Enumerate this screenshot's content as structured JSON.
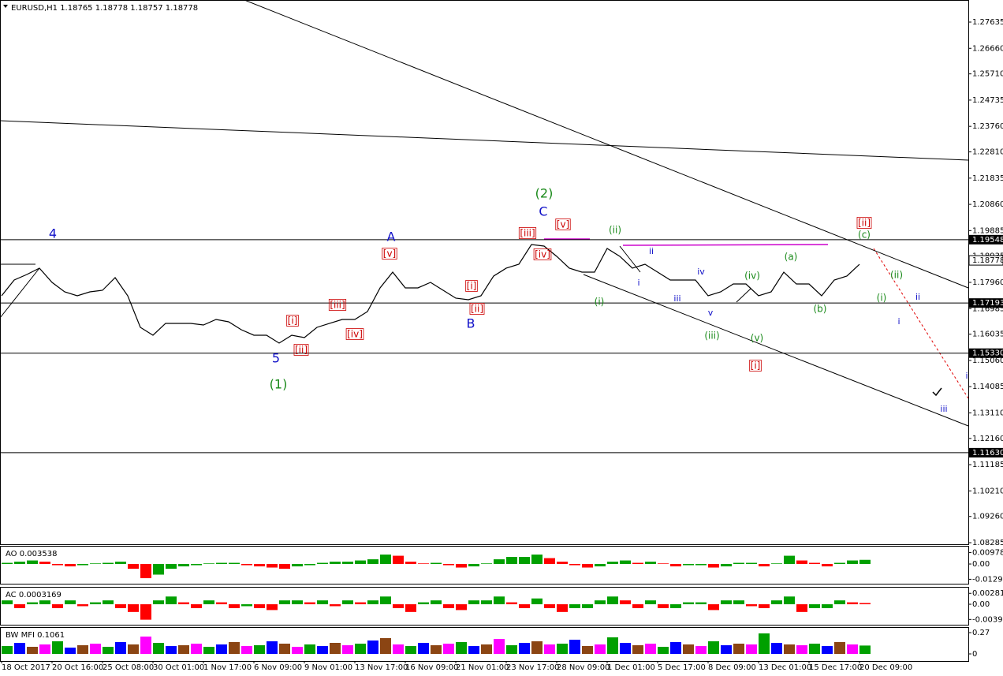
{
  "chart_data": [
    {
      "type": "line",
      "title": "EURUSD,H1  1.18765 1.18778 1.18757 1.18778",
      "categories": [
        "18 Oct 2017",
        null,
        null,
        null,
        "20 Oct 16:00",
        null,
        null,
        null,
        "25 Oct 08:00",
        null,
        null,
        null,
        "30 Oct 01:00",
        null,
        null,
        null,
        "1 Nov 17:00",
        null,
        null,
        null,
        "6 Nov 09:00",
        null,
        null,
        null,
        "9 Nov 01:00",
        null,
        null,
        null,
        "13 Nov 17:00",
        null,
        null,
        null,
        "16 Nov 09:00",
        null,
        null,
        null,
        "21 Nov 01:00",
        null,
        null,
        null,
        "23 Nov 17:00",
        null,
        null,
        null,
        "28 Nov 09:00",
        null,
        null,
        null,
        "1 Dec 01:00",
        null,
        null,
        null,
        "5 Dec 17:00",
        null,
        null,
        null,
        "8 Dec 09:00",
        null,
        null,
        null,
        "13 Dec 01:00",
        null,
        null,
        null,
        "15 Dec 17:00",
        null,
        null,
        null,
        "20 Dec 09:00"
      ],
      "values": [
        1.17462,
        1.18048,
        1.18253,
        1.18488,
        1.1796,
        1.17608,
        1.17462,
        1.17608,
        1.17667,
        1.18136,
        1.17462,
        1.16289,
        1.15996,
        1.16436,
        1.16436,
        1.16436,
        1.16377,
        1.16582,
        1.16494,
        1.16201,
        1.15996,
        1.15996,
        1.15703,
        1.15996,
        1.15908,
        1.16289,
        1.16436,
        1.16582,
        1.16582,
        1.16875,
        1.17755,
        1.18341,
        1.17755,
        1.17755,
        1.1796,
        1.17667,
        1.17374,
        1.17315,
        1.17462,
        1.18195,
        1.18488,
        1.18634,
        1.19367,
        1.19309,
        1.18928,
        1.18488,
        1.18341,
        1.18341,
        1.19221,
        1.18928,
        1.18488,
        1.18634,
        1.18341,
        1.18048,
        1.18048,
        1.18048,
        1.17462,
        1.17608,
        1.17901,
        1.17901,
        1.17462,
        1.17608,
        1.18341,
        1.17901,
        1.17901,
        1.17462,
        1.18048,
        1.18195,
        1.18634
      ],
      "color": "#000000",
      "ylim": [
        1.08226,
        1.28456
      ],
      "yticks": [
        1.27635,
        {
          "value": 1.2666,
          "label": "1.26660"
        },
        {
          "value": 1.2571,
          "label": "1.25710"
        },
        1.24735,
        {
          "value": 1.2376,
          "label": "1.23760"
        },
        {
          "value": 1.2281,
          "label": "1.22810"
        },
        1.21835,
        {
          "value": 1.2086,
          "label": "1.20860"
        },
        1.19885,
        1.18935,
        {
          "value": 1.1796,
          "label": "1.17960"
        },
        1.16985,
        1.16035,
        {
          "value": 1.1506,
          "label": "1.15060"
        },
        1.14085,
        {
          "value": 1.1311,
          "label": "1.13110"
        },
        {
          "value": 1.1216,
          "label": "1.12160"
        },
        1.11185,
        {
          "value": 1.1021,
          "label": "1.10210"
        },
        {
          "value": 1.0926,
          "label": "1.09260"
        },
        1.08285
      ],
      "levels": [
        1.19548,
        1.17193,
        {
          "value": 1.1533,
          "label": "1.15330"
        },
        {
          "value": 1.1163,
          "label": "1.11630"
        }
      ],
      "current_price": 1.18778,
      "annotations": [
        {
          "text": "4",
          "color": "#1010c8"
        },
        {
          "text": "A",
          "color": "#1010c8"
        },
        {
          "text": "B",
          "color": "#1010c8"
        },
        {
          "text": "C",
          "color": "#1010c8"
        },
        {
          "text": "5",
          "color": "#1010c8"
        },
        {
          "text": "i",
          "color": "#1010c8"
        },
        {
          "text": "ii",
          "color": "#1010c8"
        },
        {
          "text": "iii",
          "color": "#1010c8"
        },
        {
          "text": "iv",
          "color": "#1010c8"
        },
        {
          "text": "v",
          "color": "#1010c8"
        },
        {
          "text": "ii",
          "color": "#1010c8"
        },
        {
          "text": "i",
          "color": "#1010c8"
        },
        {
          "text": "iii",
          "color": "#1010c8"
        },
        {
          "text": "i",
          "color": "#1010c8"
        },
        {
          "text": "(1)",
          "color": "#1a8a1a"
        },
        {
          "text": "(2)",
          "color": "#1a8a1a"
        },
        {
          "text": "(ii)",
          "color": "#1a8a1a"
        },
        {
          "text": "(i)",
          "color": "#1a8a1a"
        },
        {
          "text": "(iii)",
          "color": "#1a8a1a"
        },
        {
          "text": "(iv)",
          "color": "#1a8a1a"
        },
        {
          "text": "(v)",
          "color": "#1a8a1a"
        },
        {
          "text": "(a)",
          "color": "#1a8a1a"
        },
        {
          "text": "(b)",
          "color": "#1a8a1a"
        },
        {
          "text": "(c)",
          "color": "#1a8a1a"
        },
        {
          "text": "(ii)",
          "color": "#1a8a1a"
        },
        {
          "text": "(i)",
          "color": "#1a8a1a"
        },
        {
          "text": "[i]",
          "color": "#cc0000",
          "boxed": true
        },
        {
          "text": "[ii]",
          "color": "#cc0000",
          "boxed": true
        },
        {
          "text": "[iii]",
          "color": "#cc0000",
          "boxed": true
        },
        {
          "text": "[iv]",
          "color": "#cc0000",
          "boxed": true
        },
        {
          "text": "[v]",
          "color": "#cc0000",
          "boxed": true
        },
        {
          "text": "[i]",
          "color": "#cc0000",
          "boxed": true
        },
        {
          "text": "[ii]",
          "color": "#cc0000",
          "boxed": true
        },
        {
          "text": "[iii]",
          "color": "#cc0000",
          "boxed": true
        },
        {
          "text": "[iv]",
          "color": "#cc0000",
          "boxed": true
        },
        {
          "text": "[v]",
          "color": "#cc0000",
          "boxed": true
        },
        {
          "text": "[ii]",
          "color": "#cc0000",
          "boxed": true
        },
        {
          "text": "[i]",
          "color": "#cc0000",
          "boxed": true
        }
      ]
    },
    {
      "type": "bar",
      "label": "AO 0.003538",
      "values": [
        0.001,
        0.002,
        0.003,
        0.002,
        -0.001,
        -0.002,
        -0.001,
        0.0005,
        0.001,
        0.002,
        -0.004,
        -0.012,
        -0.009,
        -0.004,
        -0.002,
        -0.001,
        0.0005,
        0.001,
        0.001,
        -0.001,
        -0.002,
        -0.003,
        -0.004,
        -0.002,
        -0.001,
        0.001,
        0.002,
        0.002,
        0.003,
        0.004,
        0.008,
        0.007,
        0.002,
        0.0005,
        0.001,
        -0.001,
        -0.003,
        -0.002,
        0.0005,
        0.004,
        0.006,
        0.006,
        0.008,
        0.005,
        0.002,
        -0.001,
        -0.003,
        -0.002,
        0.002,
        0.003,
        0.001,
        0.002,
        0.0005,
        -0.002,
        -0.001,
        -0.001,
        -0.003,
        -0.002,
        0.001,
        0.001,
        -0.002,
        0.0005,
        0.007,
        0.003,
        0.001,
        -0.002,
        0.001,
        0.003,
        0.003538
      ],
      "up_color": "#00a000",
      "down_color": "#ff0000",
      "ylim": [
        -0.0167,
        0.0154
      ],
      "yticks": [
        0.009781,
        {
          "value": 0,
          "label": "0.00"
        },
        -0.012949
      ]
    },
    {
      "type": "bar",
      "label": "AC 0.0003169",
      "values": [
        0.001,
        -0.001,
        0.0005,
        0.001,
        -0.001,
        0.001,
        -0.0005,
        0.0005,
        0.001,
        -0.001,
        -0.002,
        -0.004,
        0.001,
        0.002,
        0.0005,
        -0.001,
        0.001,
        0.0005,
        -0.001,
        -0.0005,
        -0.001,
        -0.0015,
        0.001,
        0.001,
        0.0005,
        0.001,
        -0.0005,
        0.001,
        0.0005,
        0.001,
        0.002,
        -0.001,
        -0.002,
        0.0005,
        0.001,
        -0.001,
        -0.0015,
        0.001,
        0.001,
        0.002,
        0.0005,
        -0.001,
        0.0015,
        -0.001,
        -0.002,
        -0.001,
        -0.001,
        0.001,
        0.002,
        0.001,
        -0.001,
        0.001,
        -0.001,
        -0.001,
        0.0005,
        0.0005,
        -0.0015,
        0.001,
        0.001,
        -0.0005,
        -0.001,
        0.001,
        0.002,
        -0.002,
        -0.001,
        -0.001,
        0.001,
        0.0005,
        0.0003169
      ],
      "up_color": "#00a000",
      "down_color": "#ff0000",
      "ylim": [
        -0.0053,
        0.0045
      ],
      "yticks": [
        0.002817,
        {
          "value": 0,
          "label": "0.00"
        },
        -0.003935
      ]
    },
    {
      "type": "bar",
      "label": "BW MFI 0.1061",
      "values": [
        0.1,
        0.14,
        0.09,
        0.12,
        0.16,
        0.08,
        0.11,
        0.13,
        0.09,
        0.15,
        0.12,
        0.22,
        0.14,
        0.1,
        0.11,
        0.13,
        0.09,
        0.12,
        0.15,
        0.1,
        0.11,
        0.16,
        0.13,
        0.09,
        0.12,
        0.1,
        0.14,
        0.11,
        0.13,
        0.17,
        0.2,
        0.12,
        0.1,
        0.14,
        0.11,
        0.13,
        0.15,
        0.1,
        0.12,
        0.19,
        0.11,
        0.14,
        0.16,
        0.12,
        0.13,
        0.18,
        0.1,
        0.12,
        0.21,
        0.14,
        0.11,
        0.13,
        0.09,
        0.15,
        0.12,
        0.1,
        0.16,
        0.11,
        0.13,
        0.12,
        0.26,
        0.14,
        0.12,
        0.11,
        0.13,
        0.1,
        0.15,
        0.12,
        0.1061
      ],
      "colors": [
        "#00a000",
        "#0000ff",
        "#8b4513",
        "#ff00ff"
      ],
      "ylim": [
        -0.09,
        0.34
      ],
      "yticks": [
        0.27,
        0
      ]
    }
  ]
}
